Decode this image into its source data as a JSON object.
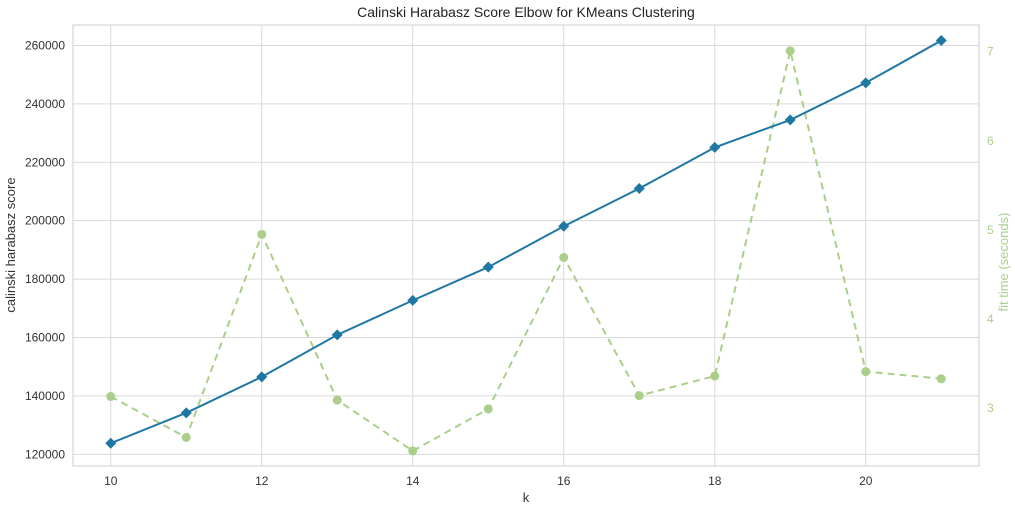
{
  "chart_data": {
    "type": "line",
    "title": "Calinski Harabasz Score Elbow for KMeans Clustering",
    "xlabel": "k",
    "ylabel": "calinski harabasz score",
    "y2label": "fit time (seconds)",
    "x": [
      10,
      11,
      12,
      13,
      14,
      15,
      16,
      17,
      18,
      19,
      20,
      21
    ],
    "xticks": [
      10,
      12,
      14,
      16,
      18,
      20
    ],
    "yticks": [
      120000,
      140000,
      160000,
      180000,
      200000,
      220000,
      240000,
      260000
    ],
    "y2ticks": [
      3,
      4,
      5,
      6,
      7
    ],
    "xlim": [
      9.5,
      21.5
    ],
    "ylim": [
      116000,
      267000
    ],
    "y2lim": [
      2.35,
      7.3
    ],
    "grid": true,
    "series": [
      {
        "axis": "left",
        "style": "solid",
        "marker": "diamond",
        "color": "#1f77a4",
        "values": [
          123800,
          134200,
          146500,
          160900,
          172700,
          184100,
          198100,
          211000,
          225100,
          234500,
          247200,
          261700
        ]
      },
      {
        "axis": "right",
        "style": "dashed",
        "marker": "circle",
        "color": "#a9cf8a",
        "values": [
          3.13,
          2.67,
          4.95,
          3.09,
          2.52,
          2.99,
          4.69,
          3.14,
          3.36,
          7.01,
          3.41,
          3.33
        ]
      }
    ]
  }
}
